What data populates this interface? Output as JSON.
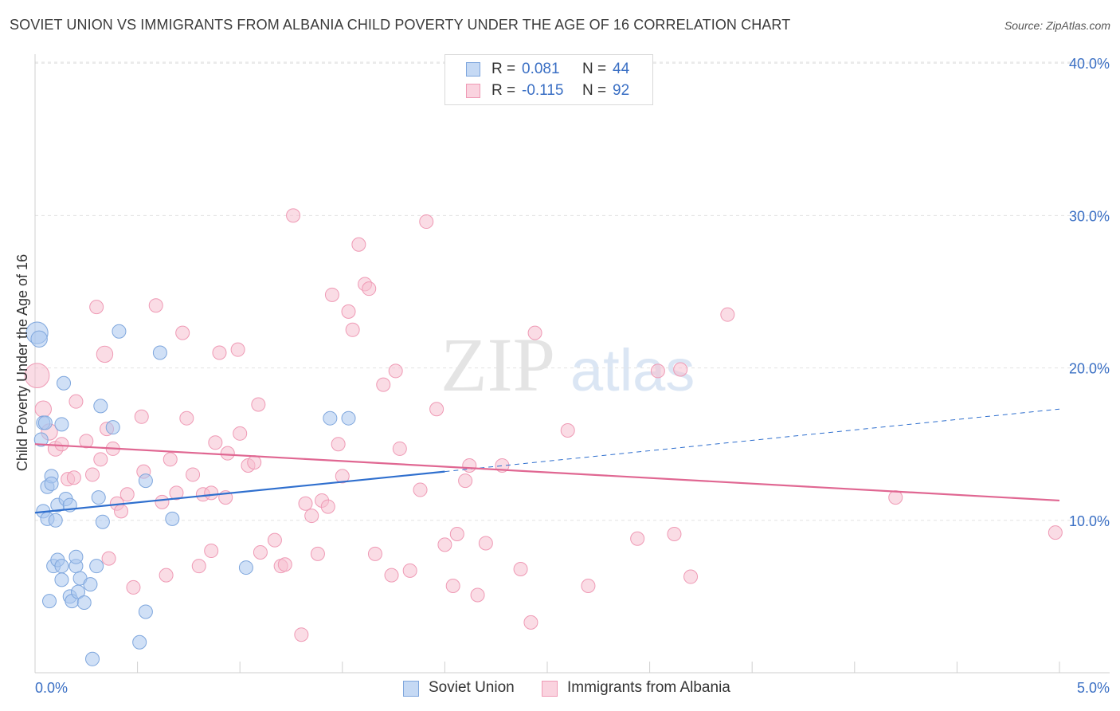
{
  "header": {
    "title": "SOVIET UNION VS IMMIGRANTS FROM ALBANIA CHILD POVERTY UNDER THE AGE OF 16 CORRELATION CHART",
    "source": "Source: ZipAtlas.com"
  },
  "legend": {
    "rows": [
      {
        "r_label": "R =",
        "r_value": "0.081",
        "n_label": "N =",
        "n_value": "44"
      },
      {
        "r_label": "R =",
        "r_value": "-0.115",
        "n_label": "N =",
        "n_value": "92"
      }
    ],
    "bottom": [
      "Soviet Union",
      "Immigrants from Albania"
    ]
  },
  "watermark": {
    "zip": "ZIP",
    "atlas": "atlas"
  },
  "colors": {
    "soviet_fill": "#a9c6ee",
    "soviet_stroke": "#7ea6dd",
    "soviet_line": "#2f6fce",
    "albania_fill": "#f6bfd0",
    "albania_stroke": "#ef9ab5",
    "albania_line": "#e06792",
    "axis_label": "#3a6fc4"
  },
  "chart_data": {
    "type": "scatter",
    "title": "SOVIET UNION VS IMMIGRANTS FROM ALBANIA CHILD POVERTY UNDER THE AGE OF 16 CORRELATION CHART",
    "xlabel": "",
    "ylabel": "Child Poverty Under the Age of 16",
    "xlim": [
      0,
      5
    ],
    "ylim": [
      0,
      41
    ],
    "x_tick_labels": [
      "0.0%",
      "5.0%"
    ],
    "y_ticks": [
      10,
      20,
      30,
      40
    ],
    "y_tick_labels": [
      "10.0%",
      "20.0%",
      "30.0%",
      "40.0%"
    ],
    "grid": true,
    "legend_position": "top-center",
    "series": [
      {
        "name": "Soviet Union",
        "R": 0.081,
        "N": 44,
        "trend": {
          "x0": 0.0,
          "y0": 10.5,
          "x1": 2.0,
          "y1": 13.2,
          "dashed_to_x": 5.0,
          "dashed_to_y": 17.3
        },
        "points": [
          [
            0.01,
            22.3,
            16
          ],
          [
            0.02,
            21.9,
            12
          ],
          [
            0.03,
            15.3,
            10
          ],
          [
            0.04,
            16.4,
            10
          ],
          [
            0.05,
            16.4,
            10
          ],
          [
            0.06,
            12.2,
            10
          ],
          [
            0.08,
            12.9,
            10
          ],
          [
            0.08,
            12.4,
            10
          ],
          [
            0.04,
            10.6,
            10
          ],
          [
            0.06,
            10.1,
            10
          ],
          [
            0.1,
            10.0,
            10
          ],
          [
            0.11,
            11.0,
            10
          ],
          [
            0.13,
            16.3,
            10
          ],
          [
            0.14,
            19.0,
            10
          ],
          [
            0.15,
            11.4,
            10
          ],
          [
            0.17,
            11.0,
            10
          ],
          [
            0.09,
            7.0,
            10
          ],
          [
            0.11,
            7.4,
            10
          ],
          [
            0.13,
            6.1,
            10
          ],
          [
            0.13,
            7.0,
            10
          ],
          [
            0.17,
            5.0,
            10
          ],
          [
            0.18,
            4.7,
            10
          ],
          [
            0.2,
            7.0,
            10
          ],
          [
            0.2,
            7.6,
            10
          ],
          [
            0.21,
            5.3,
            10
          ],
          [
            0.22,
            6.2,
            10
          ],
          [
            0.24,
            4.6,
            10
          ],
          [
            0.27,
            5.8,
            10
          ],
          [
            0.3,
            7.0,
            10
          ],
          [
            0.31,
            11.5,
            10
          ],
          [
            0.32,
            17.5,
            10
          ],
          [
            0.33,
            9.9,
            10
          ],
          [
            0.38,
            16.1,
            10
          ],
          [
            0.41,
            22.4,
            10
          ],
          [
            0.54,
            12.6,
            10
          ],
          [
            0.54,
            4.0,
            10
          ],
          [
            0.61,
            21.0,
            10
          ],
          [
            0.67,
            10.1,
            10
          ],
          [
            1.03,
            6.9,
            10
          ],
          [
            1.44,
            16.7,
            10
          ],
          [
            1.53,
            16.7,
            10
          ],
          [
            0.28,
            0.9,
            10
          ],
          [
            0.51,
            2.0,
            10
          ],
          [
            0.07,
            4.7,
            10
          ]
        ]
      },
      {
        "name": "Immigrants from Albania",
        "R": -0.115,
        "N": 92,
        "trend": {
          "x0": 0.0,
          "y0": 15.0,
          "x1": 5.0,
          "y1": 11.3
        },
        "points": [
          [
            0.01,
            19.5,
            18
          ],
          [
            0.04,
            17.3,
            12
          ],
          [
            0.07,
            15.8,
            12
          ],
          [
            0.1,
            14.7,
            11
          ],
          [
            0.13,
            15.0,
            10
          ],
          [
            0.16,
            12.7,
            10
          ],
          [
            0.19,
            12.8,
            10
          ],
          [
            0.2,
            17.8,
            10
          ],
          [
            0.25,
            15.2,
            10
          ],
          [
            0.28,
            13.0,
            10
          ],
          [
            0.3,
            24.0,
            10
          ],
          [
            0.32,
            14.0,
            10
          ],
          [
            0.34,
            20.9,
            12
          ],
          [
            0.36,
            7.5,
            10
          ],
          [
            0.38,
            14.7,
            10
          ],
          [
            0.4,
            11.1,
            10
          ],
          [
            0.42,
            10.6,
            10
          ],
          [
            0.45,
            11.7,
            10
          ],
          [
            0.48,
            5.6,
            10
          ],
          [
            0.52,
            16.8,
            10
          ],
          [
            0.53,
            13.2,
            10
          ],
          [
            0.59,
            24.1,
            10
          ],
          [
            0.62,
            11.2,
            10
          ],
          [
            0.64,
            6.4,
            10
          ],
          [
            0.66,
            14.0,
            10
          ],
          [
            0.69,
            11.8,
            10
          ],
          [
            0.72,
            22.3,
            10
          ],
          [
            0.74,
            16.7,
            10
          ],
          [
            0.77,
            13.0,
            10
          ],
          [
            0.8,
            7.0,
            10
          ],
          [
            0.82,
            11.7,
            10
          ],
          [
            0.86,
            11.8,
            10
          ],
          [
            0.88,
            15.1,
            10
          ],
          [
            0.9,
            21.0,
            10
          ],
          [
            0.93,
            11.5,
            10
          ],
          [
            0.94,
            14.4,
            10
          ],
          [
            0.99,
            21.2,
            10
          ],
          [
            1.0,
            15.7,
            10
          ],
          [
            1.04,
            13.6,
            10
          ],
          [
            1.07,
            13.8,
            10
          ],
          [
            1.09,
            17.6,
            10
          ],
          [
            1.1,
            7.9,
            10
          ],
          [
            1.17,
            8.7,
            10
          ],
          [
            1.2,
            7.0,
            10
          ],
          [
            1.22,
            7.1,
            10
          ],
          [
            1.26,
            30.0,
            10
          ],
          [
            1.3,
            2.5,
            10
          ],
          [
            1.32,
            11.1,
            10
          ],
          [
            1.35,
            10.3,
            10
          ],
          [
            1.38,
            7.8,
            10
          ],
          [
            1.4,
            11.3,
            10
          ],
          [
            1.43,
            10.9,
            10
          ],
          [
            1.45,
            24.8,
            10
          ],
          [
            1.48,
            15.0,
            10
          ],
          [
            1.5,
            12.9,
            10
          ],
          [
            1.53,
            23.7,
            10
          ],
          [
            1.55,
            22.5,
            10
          ],
          [
            1.58,
            28.1,
            10
          ],
          [
            1.61,
            25.5,
            10
          ],
          [
            1.63,
            25.2,
            10
          ],
          [
            1.66,
            7.8,
            10
          ],
          [
            1.7,
            18.9,
            10
          ],
          [
            1.74,
            6.4,
            10
          ],
          [
            1.76,
            19.8,
            10
          ],
          [
            1.78,
            14.7,
            10
          ],
          [
            1.83,
            6.7,
            10
          ],
          [
            1.88,
            12.0,
            10
          ],
          [
            1.91,
            29.6,
            10
          ],
          [
            1.96,
            17.3,
            10
          ],
          [
            2.0,
            8.4,
            10
          ],
          [
            2.04,
            5.7,
            10
          ],
          [
            2.06,
            9.1,
            10
          ],
          [
            2.1,
            12.6,
            10
          ],
          [
            2.12,
            13.6,
            10
          ],
          [
            2.16,
            5.1,
            10
          ],
          [
            2.2,
            8.5,
            10
          ],
          [
            2.28,
            13.6,
            10
          ],
          [
            2.37,
            6.8,
            10
          ],
          [
            2.42,
            3.3,
            10
          ],
          [
            2.44,
            22.3,
            10
          ],
          [
            2.6,
            15.9,
            10
          ],
          [
            2.7,
            5.7,
            10
          ],
          [
            2.94,
            8.8,
            10
          ],
          [
            3.04,
            19.8,
            10
          ],
          [
            3.12,
            9.1,
            10
          ],
          [
            3.15,
            19.9,
            10
          ],
          [
            3.2,
            6.3,
            10
          ],
          [
            3.38,
            23.5,
            10
          ],
          [
            4.2,
            11.5,
            10
          ],
          [
            4.98,
            9.2,
            10
          ],
          [
            0.35,
            16.0,
            10
          ],
          [
            0.86,
            8.0,
            10
          ]
        ]
      }
    ]
  }
}
